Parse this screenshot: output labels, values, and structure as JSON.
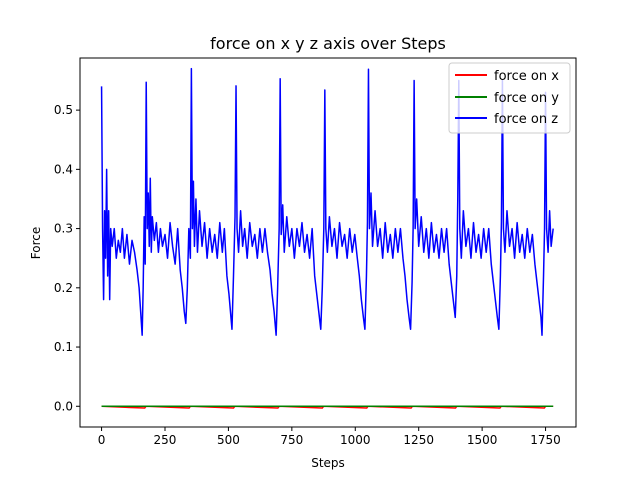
{
  "chart_data": {
    "type": "line",
    "title": "force on x y z axis over Steps",
    "xlabel": "Steps",
    "ylabel": "Force",
    "xlim": [
      -85,
      1870
    ],
    "ylim": [
      -0.035,
      0.588
    ],
    "xticks": [
      0,
      250,
      500,
      750,
      1000,
      1250,
      1500,
      1750
    ],
    "yticks": [
      0.0,
      0.1,
      0.2,
      0.3,
      0.4,
      0.5
    ],
    "xtick_labels": [
      "0",
      "250",
      "500",
      "750",
      "1000",
      "1250",
      "1500",
      "1750"
    ],
    "ytick_labels": [
      "0.0",
      "0.1",
      "0.2",
      "0.3",
      "0.4",
      "0.5"
    ],
    "grid": false,
    "legend_position": "top-right",
    "series": [
      {
        "name": "force on x",
        "color": "#ff0000",
        "points": [
          [
            0,
            0.0
          ],
          [
            170,
            -0.003
          ],
          [
            175,
            0.0
          ],
          [
            345,
            -0.003
          ],
          [
            350,
            0.0
          ],
          [
            520,
            -0.003
          ],
          [
            525,
            0.0
          ],
          [
            695,
            -0.003
          ],
          [
            700,
            0.0
          ],
          [
            870,
            -0.003
          ],
          [
            875,
            0.0
          ],
          [
            1045,
            -0.003
          ],
          [
            1050,
            0.0
          ],
          [
            1220,
            -0.003
          ],
          [
            1225,
            0.0
          ],
          [
            1395,
            -0.003
          ],
          [
            1400,
            0.0
          ],
          [
            1570,
            -0.003
          ],
          [
            1575,
            0.0
          ],
          [
            1745,
            -0.003
          ],
          [
            1750,
            0.0
          ],
          [
            1780,
            0.0
          ]
        ]
      },
      {
        "name": "force on y",
        "color": "#008000",
        "points": [
          [
            0,
            0.0
          ],
          [
            1780,
            0.0
          ]
        ]
      },
      {
        "name": "force on z",
        "color": "#0000ff",
        "points": [
          [
            0,
            0.54
          ],
          [
            4,
            0.3
          ],
          [
            8,
            0.18
          ],
          [
            12,
            0.33
          ],
          [
            16,
            0.25
          ],
          [
            20,
            0.4
          ],
          [
            24,
            0.22
          ],
          [
            28,
            0.33
          ],
          [
            32,
            0.18
          ],
          [
            36,
            0.3
          ],
          [
            42,
            0.27
          ],
          [
            50,
            0.3
          ],
          [
            58,
            0.25
          ],
          [
            66,
            0.28
          ],
          [
            74,
            0.26
          ],
          [
            82,
            0.3
          ],
          [
            90,
            0.25
          ],
          [
            100,
            0.29
          ],
          [
            110,
            0.24
          ],
          [
            120,
            0.28
          ],
          [
            130,
            0.26
          ],
          [
            140,
            0.23
          ],
          [
            148,
            0.2
          ],
          [
            154,
            0.16
          ],
          [
            160,
            0.12
          ],
          [
            164,
            0.2
          ],
          [
            168,
            0.32
          ],
          [
            172,
            0.24
          ],
          [
            176,
            0.547
          ],
          [
            180,
            0.3
          ],
          [
            184,
            0.36
          ],
          [
            188,
            0.27
          ],
          [
            192,
            0.385
          ],
          [
            196,
            0.26
          ],
          [
            200,
            0.32
          ],
          [
            208,
            0.28
          ],
          [
            216,
            0.31
          ],
          [
            224,
            0.26
          ],
          [
            232,
            0.3
          ],
          [
            240,
            0.27
          ],
          [
            250,
            0.29
          ],
          [
            260,
            0.25
          ],
          [
            270,
            0.31
          ],
          [
            280,
            0.27
          ],
          [
            290,
            0.24
          ],
          [
            300,
            0.3
          ],
          [
            310,
            0.23
          ],
          [
            318,
            0.2
          ],
          [
            326,
            0.16
          ],
          [
            332,
            0.14
          ],
          [
            338,
            0.2
          ],
          [
            344,
            0.3
          ],
          [
            350,
            0.25
          ],
          [
            354,
            0.57
          ],
          [
            358,
            0.3
          ],
          [
            362,
            0.38
          ],
          [
            366,
            0.27
          ],
          [
            372,
            0.35
          ],
          [
            378,
            0.26
          ],
          [
            386,
            0.33
          ],
          [
            396,
            0.27
          ],
          [
            406,
            0.31
          ],
          [
            416,
            0.25
          ],
          [
            426,
            0.3
          ],
          [
            436,
            0.26
          ],
          [
            446,
            0.29
          ],
          [
            456,
            0.25
          ],
          [
            466,
            0.31
          ],
          [
            476,
            0.26
          ],
          [
            484,
            0.3
          ],
          [
            494,
            0.22
          ],
          [
            502,
            0.19
          ],
          [
            508,
            0.16
          ],
          [
            514,
            0.13
          ],
          [
            520,
            0.22
          ],
          [
            526,
            0.32
          ],
          [
            530,
            0.541
          ],
          [
            534,
            0.3
          ],
          [
            540,
            0.26
          ],
          [
            548,
            0.33
          ],
          [
            556,
            0.27
          ],
          [
            564,
            0.3
          ],
          [
            574,
            0.25
          ],
          [
            584,
            0.31
          ],
          [
            594,
            0.27
          ],
          [
            604,
            0.29
          ],
          [
            614,
            0.25
          ],
          [
            624,
            0.3
          ],
          [
            634,
            0.26
          ],
          [
            644,
            0.3
          ],
          [
            654,
            0.26
          ],
          [
            664,
            0.23
          ],
          [
            672,
            0.19
          ],
          [
            680,
            0.16
          ],
          [
            688,
            0.12
          ],
          [
            694,
            0.2
          ],
          [
            700,
            0.3
          ],
          [
            704,
            0.553
          ],
          [
            708,
            0.29
          ],
          [
            714,
            0.34
          ],
          [
            720,
            0.26
          ],
          [
            730,
            0.32
          ],
          [
            740,
            0.27
          ],
          [
            750,
            0.3
          ],
          [
            760,
            0.25
          ],
          [
            770,
            0.3
          ],
          [
            780,
            0.27
          ],
          [
            790,
            0.31
          ],
          [
            800,
            0.26
          ],
          [
            810,
            0.29
          ],
          [
            820,
            0.25
          ],
          [
            830,
            0.3
          ],
          [
            840,
            0.22
          ],
          [
            848,
            0.19
          ],
          [
            856,
            0.16
          ],
          [
            864,
            0.13
          ],
          [
            870,
            0.2
          ],
          [
            876,
            0.3
          ],
          [
            880,
            0.534
          ],
          [
            884,
            0.3
          ],
          [
            890,
            0.26
          ],
          [
            898,
            0.32
          ],
          [
            908,
            0.27
          ],
          [
            918,
            0.3
          ],
          [
            928,
            0.25
          ],
          [
            938,
            0.31
          ],
          [
            948,
            0.27
          ],
          [
            958,
            0.29
          ],
          [
            968,
            0.25
          ],
          [
            978,
            0.3
          ],
          [
            988,
            0.26
          ],
          [
            998,
            0.29
          ],
          [
            1008,
            0.25
          ],
          [
            1016,
            0.22
          ],
          [
            1024,
            0.18
          ],
          [
            1032,
            0.15
          ],
          [
            1038,
            0.13
          ],
          [
            1044,
            0.22
          ],
          [
            1048,
            0.31
          ],
          [
            1052,
            0.569
          ],
          [
            1056,
            0.3
          ],
          [
            1062,
            0.36
          ],
          [
            1068,
            0.27
          ],
          [
            1078,
            0.33
          ],
          [
            1088,
            0.27
          ],
          [
            1098,
            0.3
          ],
          [
            1108,
            0.25
          ],
          [
            1118,
            0.31
          ],
          [
            1128,
            0.26
          ],
          [
            1138,
            0.29
          ],
          [
            1148,
            0.25
          ],
          [
            1158,
            0.3
          ],
          [
            1168,
            0.26
          ],
          [
            1178,
            0.3
          ],
          [
            1188,
            0.25
          ],
          [
            1196,
            0.22
          ],
          [
            1204,
            0.18
          ],
          [
            1212,
            0.15
          ],
          [
            1218,
            0.13
          ],
          [
            1224,
            0.21
          ],
          [
            1228,
            0.3
          ],
          [
            1232,
            0.55
          ],
          [
            1236,
            0.3
          ],
          [
            1242,
            0.35
          ],
          [
            1250,
            0.27
          ],
          [
            1260,
            0.32
          ],
          [
            1270,
            0.26
          ],
          [
            1280,
            0.3
          ],
          [
            1290,
            0.25
          ],
          [
            1300,
            0.31
          ],
          [
            1310,
            0.26
          ],
          [
            1320,
            0.29
          ],
          [
            1330,
            0.25
          ],
          [
            1340,
            0.3
          ],
          [
            1350,
            0.26
          ],
          [
            1360,
            0.3
          ],
          [
            1370,
            0.24
          ],
          [
            1378,
            0.21
          ],
          [
            1386,
            0.18
          ],
          [
            1394,
            0.15
          ],
          [
            1400,
            0.22
          ],
          [
            1404,
            0.35
          ],
          [
            1408,
            0.55
          ],
          [
            1412,
            0.3
          ],
          [
            1418,
            0.25
          ],
          [
            1426,
            0.33
          ],
          [
            1436,
            0.27
          ],
          [
            1446,
            0.3
          ],
          [
            1456,
            0.25
          ],
          [
            1466,
            0.31
          ],
          [
            1476,
            0.26
          ],
          [
            1486,
            0.29
          ],
          [
            1496,
            0.25
          ],
          [
            1506,
            0.3
          ],
          [
            1516,
            0.26
          ],
          [
            1526,
            0.3
          ],
          [
            1536,
            0.24
          ],
          [
            1544,
            0.21
          ],
          [
            1552,
            0.18
          ],
          [
            1560,
            0.15
          ],
          [
            1566,
            0.13
          ],
          [
            1572,
            0.22
          ],
          [
            1576,
            0.31
          ],
          [
            1580,
            0.55
          ],
          [
            1584,
            0.3
          ],
          [
            1590,
            0.26
          ],
          [
            1598,
            0.33
          ],
          [
            1608,
            0.27
          ],
          [
            1618,
            0.3
          ],
          [
            1628,
            0.25
          ],
          [
            1638,
            0.31
          ],
          [
            1648,
            0.26
          ],
          [
            1658,
            0.29
          ],
          [
            1668,
            0.25
          ],
          [
            1678,
            0.3
          ],
          [
            1688,
            0.26
          ],
          [
            1698,
            0.29
          ],
          [
            1708,
            0.24
          ],
          [
            1716,
            0.21
          ],
          [
            1724,
            0.18
          ],
          [
            1732,
            0.15
          ],
          [
            1736,
            0.12
          ],
          [
            1742,
            0.22
          ],
          [
            1746,
            0.3
          ],
          [
            1750,
            0.53
          ],
          [
            1754,
            0.3
          ],
          [
            1760,
            0.26
          ],
          [
            1766,
            0.33
          ],
          [
            1772,
            0.27
          ],
          [
            1780,
            0.3
          ]
        ]
      }
    ]
  }
}
